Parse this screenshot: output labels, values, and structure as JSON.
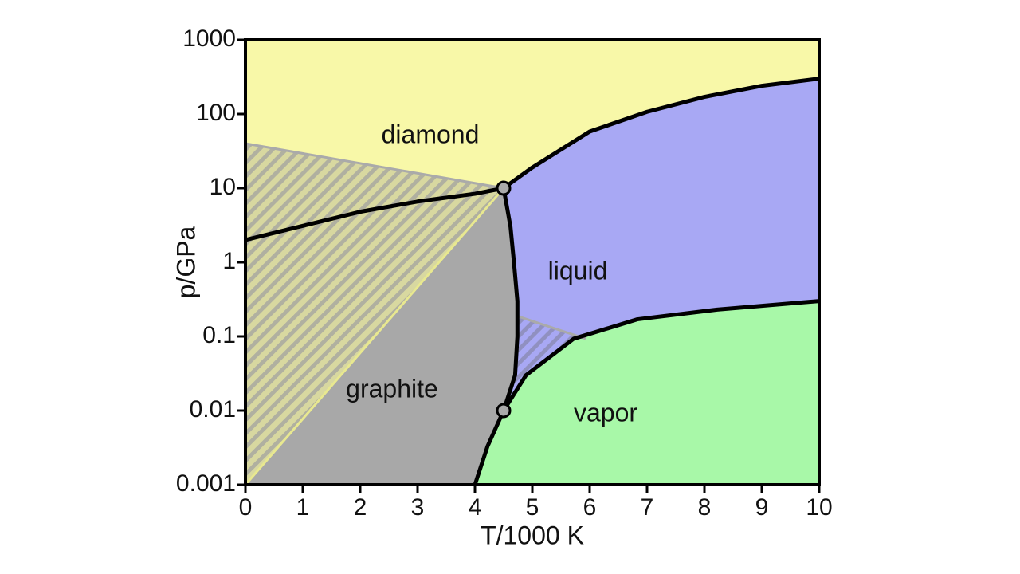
{
  "chart_data": {
    "type": "phase-diagram",
    "x_label": "T/1000 K",
    "y_label": "p/GPa",
    "xlim": [
      0,
      10
    ],
    "xticks": [
      0,
      1,
      2,
      3,
      4,
      5,
      6,
      7,
      8,
      9,
      10
    ],
    "ylim": [
      0.001,
      1000
    ],
    "yticks": [
      0.001,
      0.01,
      0.1,
      1,
      10,
      100,
      1000
    ],
    "y_scale": "log",
    "regions": [
      {
        "label": "diamond",
        "color": "#f8f8a8"
      },
      {
        "label": "liquid",
        "color": "#a8a8f4"
      },
      {
        "label": "graphite",
        "color": "#a8a8a8"
      },
      {
        "label": "vapor",
        "color": "#a8f8a8"
      }
    ],
    "curves": [
      {
        "color": "#000000",
        "x": [
          0,
          1,
          2,
          3,
          4,
          4.5
        ],
        "y": [
          2,
          3.1,
          4.8,
          6.6,
          8.4,
          10
        ]
      },
      {
        "color": "#000000",
        "x": [
          4.5,
          5,
          6,
          7,
          8,
          9,
          10
        ],
        "y": [
          10,
          19,
          58,
          107,
          170,
          240,
          300
        ]
      },
      {
        "color": "#000000",
        "x": [
          4.5,
          4.62,
          4.68,
          4.74,
          4.74,
          4.7,
          4.5
        ],
        "y": [
          10,
          3,
          1,
          0.3,
          0.1,
          0.03,
          0.01
        ]
      },
      {
        "color": "#000000",
        "x": [
          4,
          4.22,
          4.5
        ],
        "y": [
          0.001,
          0.0033,
          0.01
        ]
      },
      {
        "color": "#000000",
        "x": [
          4.5,
          4.89,
          5.72,
          6.83,
          8.22,
          10
        ],
        "y": [
          0.01,
          0.03,
          0.093,
          0.17,
          0.23,
          0.3
        ]
      },
      {
        "color": "#aaaaaa",
        "x": [
          0,
          4.5
        ],
        "y": [
          40,
          10
        ]
      },
      {
        "color": "#e8e890",
        "x": [
          0,
          4.5
        ],
        "y": [
          0.001,
          10
        ]
      },
      {
        "color": "#aaaaaa",
        "x": [
          4.72,
          5.93
        ],
        "y": [
          0.19,
          0.093
        ]
      }
    ],
    "triple_points": {
      "color": "#aaaaaa",
      "x": [
        4.5,
        4.5
      ],
      "y": [
        10,
        0.01
      ]
    }
  }
}
